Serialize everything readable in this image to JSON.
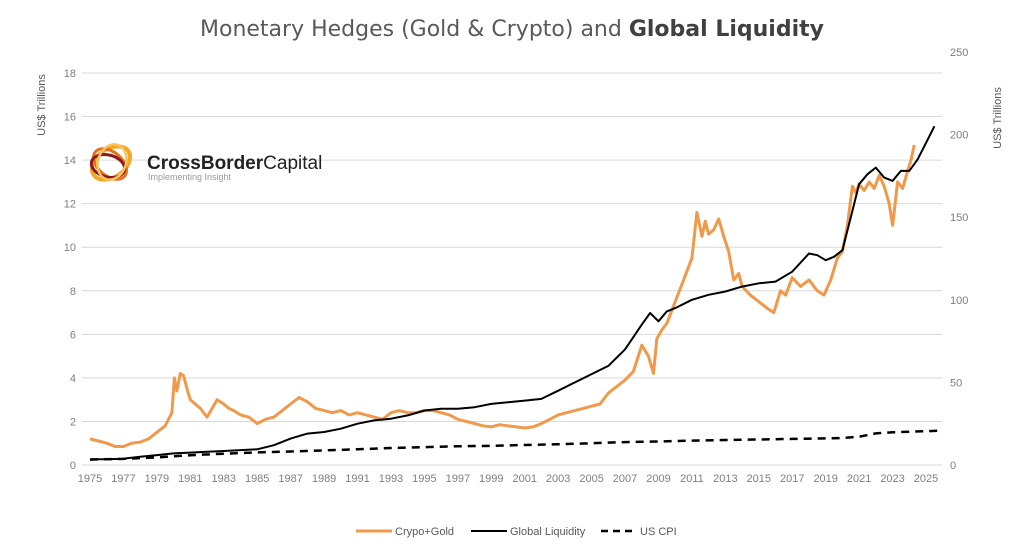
{
  "chart_data": {
    "type": "line",
    "title": "Monetary Hedges (Gold & Crypto) and ",
    "title_bold": "Global Liquidity",
    "ylabel_left": "US$ Trillions",
    "ylabel_right": "US$ Trillions",
    "ylim_left": [
      0,
      18
    ],
    "ylim_right": [
      0,
      250
    ],
    "yticks_left": [
      "0",
      "2",
      "4",
      "6",
      "8",
      "10",
      "12",
      "14",
      "16",
      "18"
    ],
    "yticks_right": [
      "0",
      "50",
      "100",
      "150",
      "200",
      "250"
    ],
    "xlim": [
      1975,
      2026
    ],
    "xticks": [
      "1975",
      "1977",
      "1979",
      "1981",
      "1983",
      "1985",
      "1987",
      "1989",
      "1991",
      "1993",
      "1995",
      "1997",
      "1999",
      "2001",
      "2003",
      "2005",
      "2007",
      "2009",
      "2011",
      "2013",
      "2015",
      "2017",
      "2019",
      "2021",
      "2023",
      "2025"
    ],
    "grid": true,
    "legend_position": "bottom",
    "series": [
      {
        "name": "Crypo+Gold",
        "axis": "left",
        "color": "#f0994a",
        "style": "solid",
        "x": [
          1975.0,
          1975.5,
          1976.0,
          1976.5,
          1977.0,
          1977.5,
          1978.0,
          1978.5,
          1979.0,
          1979.5,
          1979.9,
          1980.05,
          1980.2,
          1980.4,
          1980.6,
          1980.8,
          1981.0,
          1981.3,
          1981.6,
          1982.0,
          1982.3,
          1982.6,
          1983.0,
          1983.3,
          1983.6,
          1984.0,
          1984.5,
          1985.0,
          1985.5,
          1986.0,
          1986.5,
          1987.0,
          1987.5,
          1988.0,
          1988.5,
          1989.0,
          1989.5,
          1990.0,
          1990.5,
          1991.0,
          1991.5,
          1992.0,
          1992.5,
          1993.0,
          1993.5,
          1994.0,
          1994.5,
          1995.0,
          1995.5,
          1996.0,
          1996.5,
          1997.0,
          1997.5,
          1998.0,
          1998.5,
          1999.0,
          1999.5,
          2000.0,
          2000.5,
          2001.0,
          2001.5,
          2002.0,
          2002.5,
          2003.0,
          2003.5,
          2004.0,
          2004.5,
          2005.0,
          2005.5,
          2006.0,
          2006.5,
          2007.0,
          2007.5,
          2008.0,
          2008.4,
          2008.7,
          2008.9,
          2009.2,
          2009.5,
          2010.0,
          2010.5,
          2011.0,
          2011.3,
          2011.6,
          2011.8,
          2012.0,
          2012.3,
          2012.6,
          2012.9,
          2013.2,
          2013.5,
          2013.8,
          2014.0,
          2014.5,
          2015.0,
          2015.5,
          2015.9,
          2016.3,
          2016.6,
          2017.0,
          2017.5,
          2018.0,
          2018.5,
          2018.9,
          2019.3,
          2019.7,
          2020.0,
          2020.3,
          2020.6,
          2020.8,
          2021.0,
          2021.3,
          2021.6,
          2021.9,
          2022.2,
          2022.5,
          2022.8,
          2023.0,
          2023.3,
          2023.6,
          2023.9,
          2024.1,
          2024.3
        ],
        "values": [
          1.2,
          1.1,
          1.0,
          0.85,
          0.85,
          1.0,
          1.05,
          1.2,
          1.5,
          1.8,
          2.4,
          4.0,
          3.4,
          4.2,
          4.1,
          3.5,
          3.0,
          2.8,
          2.6,
          2.2,
          2.6,
          3.0,
          2.8,
          2.6,
          2.5,
          2.3,
          2.2,
          1.9,
          2.1,
          2.2,
          2.5,
          2.8,
          3.1,
          2.9,
          2.6,
          2.5,
          2.4,
          2.5,
          2.3,
          2.4,
          2.3,
          2.2,
          2.1,
          2.4,
          2.5,
          2.4,
          2.4,
          2.5,
          2.5,
          2.4,
          2.3,
          2.1,
          2.0,
          1.9,
          1.8,
          1.75,
          1.85,
          1.8,
          1.75,
          1.7,
          1.75,
          1.9,
          2.1,
          2.3,
          2.4,
          2.5,
          2.6,
          2.7,
          2.8,
          3.3,
          3.6,
          3.9,
          4.3,
          5.5,
          5.0,
          4.2,
          5.8,
          6.2,
          6.5,
          7.5,
          8.5,
          9.5,
          11.6,
          10.5,
          11.2,
          10.6,
          10.8,
          11.3,
          10.5,
          9.8,
          8.5,
          8.8,
          8.2,
          7.8,
          7.5,
          7.2,
          7.0,
          8.0,
          7.8,
          8.6,
          8.2,
          8.5,
          8.0,
          7.8,
          8.5,
          9.5,
          9.8,
          11.0,
          12.8,
          12.5,
          12.9,
          12.6,
          13.0,
          12.7,
          13.3,
          12.8,
          12.0,
          11.0,
          13.0,
          12.7,
          13.5,
          14.0,
          14.7
        ]
      },
      {
        "name": "Global Liquidity",
        "axis": "right",
        "color": "#000000",
        "style": "solid",
        "x": [
          1975,
          1976,
          1977,
          1978,
          1979,
          1980,
          1981,
          1982,
          1983,
          1984,
          1985,
          1986,
          1987,
          1988,
          1989,
          1990,
          1991,
          1992,
          1993,
          1994,
          1995,
          1996,
          1997,
          1998,
          1999,
          2000,
          2001,
          2002,
          2003,
          2004,
          2005,
          2006,
          2007,
          2008,
          2008.5,
          2009,
          2009.5,
          2010,
          2011,
          2012,
          2013,
          2014,
          2015,
          2016,
          2017,
          2018,
          2018.5,
          2019,
          2019.5,
          2020,
          2020.5,
          2021,
          2021.5,
          2022,
          2022.5,
          2023,
          2023.5,
          2024,
          2024.5,
          2025,
          2025.5
        ],
        "values": [
          3.5,
          3.5,
          3.8,
          5,
          6,
          7,
          7.5,
          8,
          8.5,
          9,
          9.5,
          12,
          16,
          19,
          20,
          22,
          25,
          27,
          28,
          30,
          33,
          34,
          34,
          35,
          37,
          38,
          39,
          40,
          45,
          50,
          55,
          60,
          70,
          85,
          92,
          87,
          93,
          95,
          100,
          103,
          105,
          108,
          110,
          111,
          117,
          128,
          127,
          124,
          126,
          130,
          150,
          170,
          176,
          180,
          174,
          172,
          178,
          178,
          185,
          195,
          205
        ]
      },
      {
        "name": "US CPI",
        "axis": "left",
        "color": "#000000",
        "style": "dashed",
        "x": [
          1975,
          1977,
          1979,
          1981,
          1983,
          1985,
          1987,
          1989,
          1991,
          1993,
          1995,
          1997,
          1999,
          2001,
          2003,
          2005,
          2007,
          2009,
          2011,
          2013,
          2015,
          2017,
          2019,
          2020,
          2021,
          2022,
          2023,
          2025,
          2026
        ],
        "values": [
          0.25,
          0.28,
          0.35,
          0.45,
          0.52,
          0.58,
          0.62,
          0.67,
          0.72,
          0.78,
          0.82,
          0.86,
          0.88,
          0.92,
          0.95,
          1.0,
          1.05,
          1.08,
          1.12,
          1.15,
          1.17,
          1.2,
          1.22,
          1.24,
          1.3,
          1.45,
          1.5,
          1.55,
          1.58
        ]
      }
    ],
    "legend": [
      {
        "label": "Crypo+Gold",
        "color": "#f0994a",
        "style": "solid"
      },
      {
        "label": "Global Liquidity",
        "color": "#000000",
        "style": "solid"
      },
      {
        "label": "US CPI",
        "color": "#000000",
        "style": "dashed"
      }
    ]
  },
  "logo": {
    "name_bold": "CrossBorder",
    "name_regular": "Capital",
    "tagline": "Implementing Insight"
  }
}
